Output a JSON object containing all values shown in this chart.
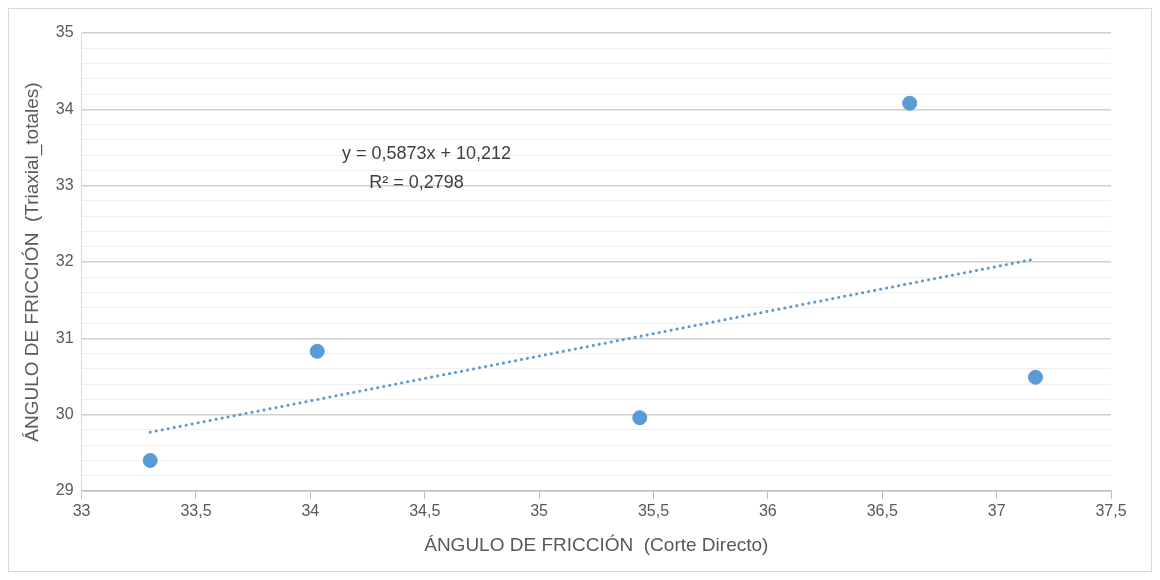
{
  "chart_data": {
    "type": "scatter",
    "xlabel": "ÁNGULO DE FRICCIÓN  (Corte Directo)",
    "ylabel": "ÁNGULO DE FRICCIÓN  (Triaxial_totales)",
    "series": [
      {
        "type": "scatter",
        "color": "#5b9bd5",
        "marker": "circle",
        "x": [
          33.3,
          34.03,
          35.44,
          36.62,
          37.17
        ],
        "values": [
          29.4,
          30.83,
          29.96,
          34.08,
          30.49
        ]
      },
      {
        "type": "line",
        "color": "#5b9bd5",
        "marker": "none",
        "line_style": "dotted",
        "x": [
          33.3,
          37.17
        ],
        "values": [
          29.77,
          32.04
        ]
      }
    ],
    "xlim": [
      33,
      37.5
    ],
    "xticks": [
      {
        "value": 33,
        "label": "33"
      },
      {
        "value": 33.5,
        "label": "33,5"
      },
      {
        "value": 34,
        "label": "34"
      },
      {
        "value": 34.5,
        "label": "34,5"
      },
      {
        "value": 35,
        "label": "35"
      },
      {
        "value": 35.5,
        "label": "35,5"
      },
      {
        "value": 36,
        "label": "36"
      },
      {
        "value": 36.5,
        "label": "36,5"
      },
      {
        "value": 37,
        "label": "37"
      },
      {
        "value": 37.5,
        "label": "37,5"
      }
    ],
    "ylim": [
      29,
      35
    ],
    "yticks": [
      29,
      {
        "value": 29.2,
        "label": null
      },
      {
        "value": 29.4,
        "label": null
      },
      {
        "value": 29.6,
        "label": null
      },
      {
        "value": 29.8,
        "label": null
      },
      30,
      {
        "value": 30.2,
        "label": null
      },
      {
        "value": 30.4,
        "label": null
      },
      {
        "value": 30.6,
        "label": null
      },
      {
        "value": 30.8,
        "label": null
      },
      31,
      {
        "value": 31.2,
        "label": null
      },
      {
        "value": 31.4,
        "label": null
      },
      {
        "value": 31.6,
        "label": null
      },
      {
        "value": 31.8,
        "label": null
      },
      32,
      {
        "value": 32.2,
        "label": null
      },
      {
        "value": 32.4,
        "label": null
      },
      {
        "value": 32.6,
        "label": null
      },
      {
        "value": 32.8,
        "label": null
      },
      33,
      {
        "value": 33.2,
        "label": null
      },
      {
        "value": 33.4,
        "label": null
      },
      {
        "value": 33.6,
        "label": null
      },
      {
        "value": 33.8,
        "label": null
      },
      34,
      {
        "value": 34.2,
        "label": null
      },
      {
        "value": 34.4,
        "label": null
      },
      {
        "value": 34.6,
        "label": null
      },
      {
        "value": 34.8,
        "label": null
      },
      35
    ],
    "grid": "y",
    "legend": false,
    "annotations": [
      "y = 0,5873x + 10,212",
      "R² = 0,2798"
    ]
  }
}
